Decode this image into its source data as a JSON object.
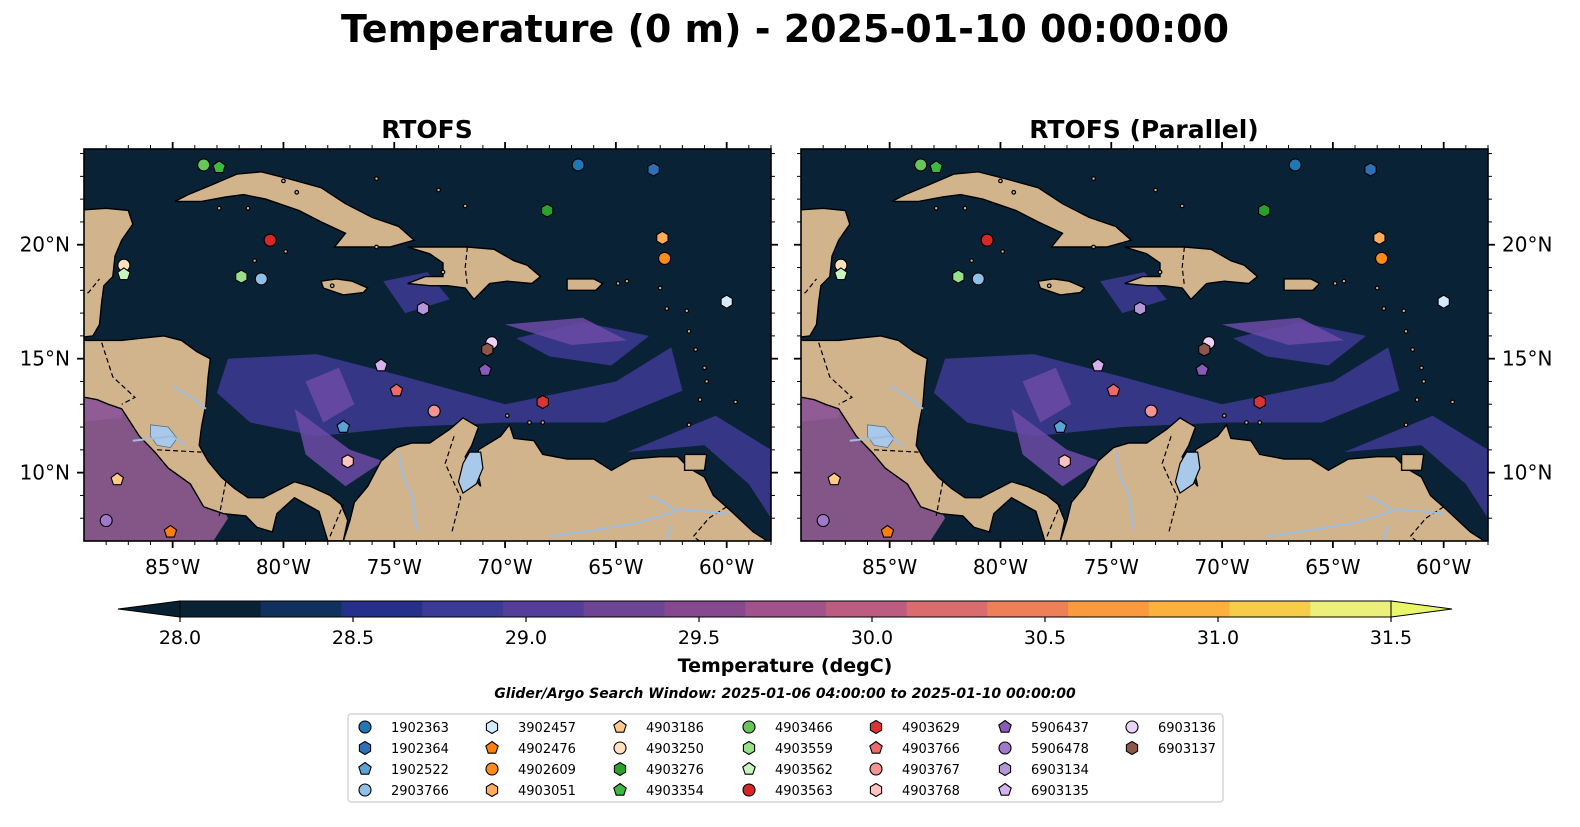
{
  "figure": {
    "title": "Temperature (0 m) - 2025-01-10 00:00:00",
    "search_window": "Glider/Argo Search Window: 2025-01-06 04:00:00 to 2025-01-10 00:00:00"
  },
  "panels": [
    {
      "title": "RTOFS"
    },
    {
      "title": "RTOFS (Parallel)"
    }
  ],
  "map_extent": {
    "lon_min": -89,
    "lon_max": -58,
    "lat_min": 7,
    "lat_max": 24.2
  },
  "axes": {
    "lon_ticks": [
      {
        "lon": -85,
        "label": "85°W"
      },
      {
        "lon": -80,
        "label": "80°W"
      },
      {
        "lon": -75,
        "label": "75°W"
      },
      {
        "lon": -70,
        "label": "70°W"
      },
      {
        "lon": -65,
        "label": "65°W"
      },
      {
        "lon": -60,
        "label": "60°W"
      }
    ],
    "lat_ticks": [
      {
        "lat": 20,
        "label": "20°N"
      },
      {
        "lat": 15,
        "label": "15°N"
      },
      {
        "lat": 10,
        "label": "10°N"
      }
    ]
  },
  "colorbar": {
    "label": "Temperature (degC)",
    "min": 28.0,
    "max": 31.5,
    "tick_labels": [
      "28.0",
      "28.5",
      "29.0",
      "29.5",
      "30.0",
      "30.5",
      "31.0",
      "31.5"
    ],
    "colors": [
      "#0a2236",
      "#10305e",
      "#25308a",
      "#3a3a97",
      "#553e9a",
      "#6e4595",
      "#86498f",
      "#a2528b",
      "#bc5c80",
      "#d96c6e",
      "#ee8057",
      "#f99a3f",
      "#fbb13b",
      "#f6cc49",
      "#ecf07b"
    ],
    "under_color": "#082030",
    "over_color": "#e9f56a"
  },
  "colors": {
    "ocean": "#0a2236",
    "land": "#d2b48c",
    "lake": "#a9c9ea",
    "warm_patch": "#3d3a93",
    "warmer_patch": "#6c4aa6",
    "hot_patch": "#9a5f95"
  },
  "floats": [
    {
      "id": "1902363",
      "marker": "circle",
      "color": "#1f77b4",
      "lon": -66.7,
      "lat": 23.5
    },
    {
      "id": "1902364",
      "marker": "hexagon",
      "color": "#2f6fb6",
      "lon": -63.3,
      "lat": 23.3
    },
    {
      "id": "1902522",
      "marker": "pentagon",
      "color": "#5aa3d6",
      "lon": -77.3,
      "lat": 12.0
    },
    {
      "id": "2903766",
      "marker": "circle",
      "color": "#8fc0e8",
      "lon": -81.0,
      "lat": 18.5
    },
    {
      "id": "3902457",
      "marker": "hexagon",
      "color": "#d5ebfb",
      "lon": -60.0,
      "lat": 17.5
    },
    {
      "id": "4902476",
      "marker": "pentagon",
      "color": "#ff7f0e",
      "lon": -85.1,
      "lat": 7.4
    },
    {
      "id": "4902609",
      "marker": "circle",
      "color": "#ff8c1a",
      "lon": -62.8,
      "lat": 19.4
    },
    {
      "id": "4903051",
      "marker": "hexagon",
      "color": "#ffad5c",
      "lon": -62.9,
      "lat": 20.3
    },
    {
      "id": "4903186",
      "marker": "pentagon",
      "color": "#ffc98a",
      "lon": -87.5,
      "lat": 9.7
    },
    {
      "id": "4903250",
      "marker": "circle",
      "color": "#ffe0bd",
      "lon": -87.2,
      "lat": 19.1
    },
    {
      "id": "4903276",
      "marker": "hexagon",
      "color": "#2ca02c",
      "lon": -68.1,
      "lat": 21.5
    },
    {
      "id": "4903354",
      "marker": "pentagon",
      "color": "#3cb843",
      "lon": -82.9,
      "lat": 23.4
    },
    {
      "id": "4903466",
      "marker": "circle",
      "color": "#66c65a",
      "lon": -83.6,
      "lat": 23.5
    },
    {
      "id": "4903559",
      "marker": "hexagon",
      "color": "#98df8a",
      "lon": -81.9,
      "lat": 18.6
    },
    {
      "id": "4903562",
      "marker": "pentagon",
      "color": "#c8f5bd",
      "lon": -87.2,
      "lat": 18.7
    },
    {
      "id": "4903563",
      "marker": "circle",
      "color": "#d62728",
      "lon": -80.6,
      "lat": 20.2
    },
    {
      "id": "4903629",
      "marker": "hexagon",
      "color": "#d93535",
      "lon": -68.3,
      "lat": 13.1
    },
    {
      "id": "4903766",
      "marker": "pentagon",
      "color": "#ee6a6a",
      "lon": -74.9,
      "lat": 13.6
    },
    {
      "id": "4903767",
      "marker": "circle",
      "color": "#f39393",
      "lon": -73.2,
      "lat": 12.7
    },
    {
      "id": "4903768",
      "marker": "hexagon",
      "color": "#ffc3c3",
      "lon": -77.1,
      "lat": 10.5
    },
    {
      "id": "5906437",
      "marker": "pentagon",
      "color": "#8a5ab8",
      "lon": -70.9,
      "lat": 14.5
    },
    {
      "id": "5906478",
      "marker": "circle",
      "color": "#a07ac8",
      "lon": -88.0,
      "lat": 7.9
    },
    {
      "id": "6903134",
      "marker": "hexagon",
      "color": "#b497d9",
      "lon": -73.7,
      "lat": 17.2
    },
    {
      "id": "6903135",
      "marker": "pentagon",
      "color": "#d6b0ef",
      "lon": -75.6,
      "lat": 14.7
    },
    {
      "id": "6903136",
      "marker": "circle",
      "color": "#ecd2fa",
      "lon": -70.6,
      "lat": 15.7
    },
    {
      "id": "6903137",
      "marker": "hexagon",
      "color": "#8c564b",
      "lon": -70.8,
      "lat": 15.4
    }
  ]
}
